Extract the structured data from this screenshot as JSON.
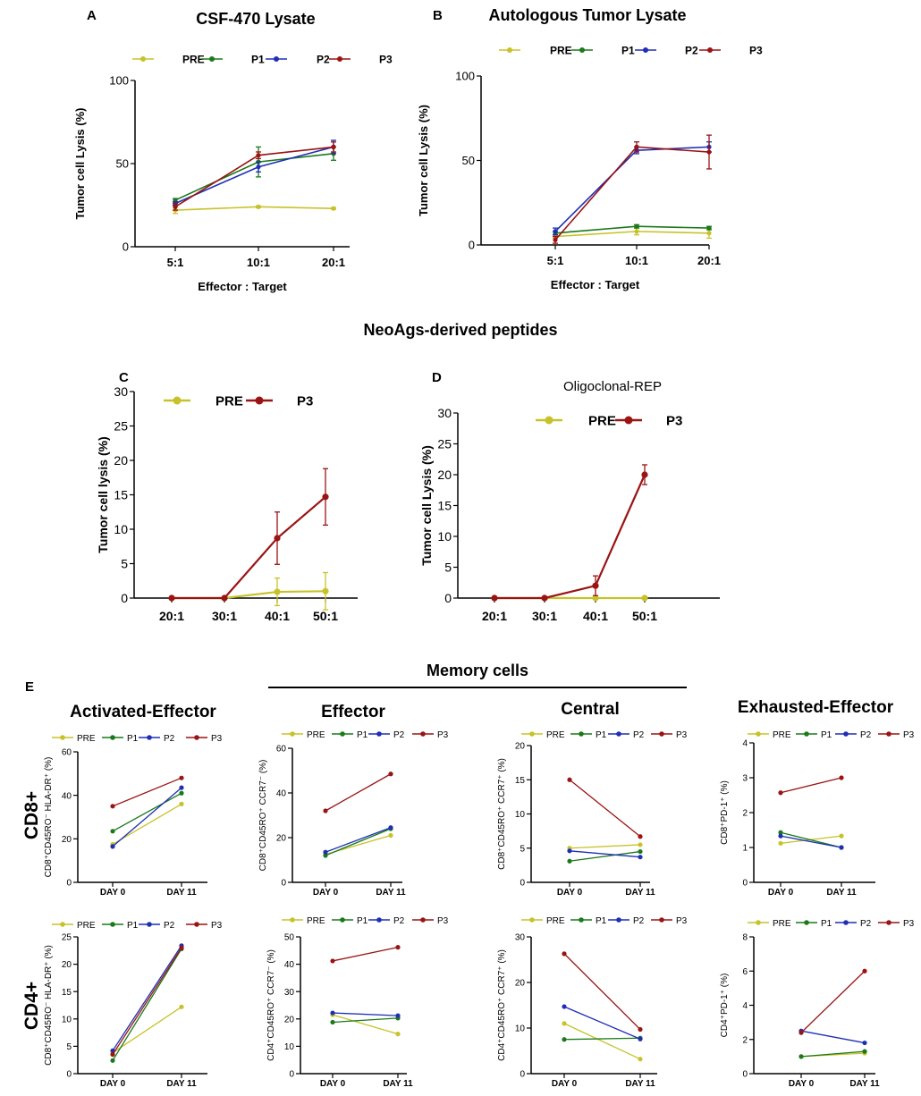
{
  "figure": {
    "panel_letters": [
      "A",
      "B",
      "C",
      "D",
      "E"
    ],
    "section_title_neo": "NeoAgs-derived peptides",
    "section_title_memory": "Memory cells",
    "row_labels": [
      "CD8+",
      "CD4+"
    ],
    "column_titles": [
      "Activated-Effector",
      "Effector",
      "Central",
      "Exhausted-Effector"
    ]
  },
  "colors": {
    "PRE": "#c8c22a",
    "P1": "#1a7a1a",
    "P2": "#1f2fb5",
    "P3": "#9a1414"
  },
  "chart_data": [
    {
      "id": "A",
      "type": "line",
      "title": "CSF-470 Lysate",
      "xlabel": "Effector : Target",
      "ylabel": "Tumor cell Lysis (%)",
      "categories": [
        "5:1",
        "10:1",
        "20:1"
      ],
      "ylim": [
        0,
        100
      ],
      "yticks": [
        0,
        50,
        100
      ],
      "series": [
        {
          "name": "PRE",
          "values": [
            22,
            24,
            23
          ],
          "errors": [
            2,
            0.5,
            0.5
          ]
        },
        {
          "name": "P1",
          "values": [
            28,
            51,
            56
          ],
          "errors": [
            1,
            9,
            4
          ]
        },
        {
          "name": "P2",
          "values": [
            26,
            48,
            60
          ],
          "errors": [
            1,
            3,
            4
          ]
        },
        {
          "name": "P3",
          "values": [
            24,
            55,
            60
          ],
          "errors": [
            2,
            2,
            3
          ]
        }
      ]
    },
    {
      "id": "B",
      "type": "line",
      "title": "Autologous Tumor Lysate",
      "xlabel": "Effector : Target",
      "ylabel": "Tumor cell Lysis (%)",
      "categories": [
        "5:1",
        "10:1",
        "20:1"
      ],
      "ylim": [
        0,
        100
      ],
      "yticks": [
        0,
        50,
        100
      ],
      "series": [
        {
          "name": "PRE",
          "values": [
            5,
            8,
            7
          ],
          "errors": [
            1,
            2,
            3
          ]
        },
        {
          "name": "P1",
          "values": [
            7,
            11,
            10
          ],
          "errors": [
            1,
            1,
            1
          ]
        },
        {
          "name": "P2",
          "values": [
            8,
            56,
            58
          ],
          "errors": [
            2,
            2,
            3
          ]
        },
        {
          "name": "P3",
          "values": [
            3,
            58,
            55
          ],
          "errors": [
            2,
            3,
            10
          ]
        }
      ]
    },
    {
      "id": "C",
      "type": "line",
      "title": "",
      "xlabel": "",
      "ylabel": "Tumor cell lysis (%)",
      "categories": [
        "20:1",
        "30:1",
        "40:1",
        "50:1"
      ],
      "ylim": [
        0,
        30
      ],
      "yticks": [
        0,
        5,
        10,
        15,
        20,
        25,
        30
      ],
      "series": [
        {
          "name": "PRE",
          "values": [
            0,
            0,
            0.9,
            1.0
          ],
          "errors": [
            0,
            0,
            2,
            2.7
          ]
        },
        {
          "name": "P3",
          "values": [
            0,
            0,
            8.7,
            14.7
          ],
          "errors": [
            0,
            0,
            3.8,
            4.1
          ]
        }
      ]
    },
    {
      "id": "D",
      "type": "line",
      "title": "Oligoclonal-REP",
      "xlabel": "",
      "ylabel": "Tumor cell Lysis (%)",
      "categories": [
        "20:1",
        "30:1",
        "40:1",
        "50:1"
      ],
      "ylim": [
        0,
        30
      ],
      "yticks": [
        0,
        5,
        10,
        15,
        20,
        25,
        30
      ],
      "series": [
        {
          "name": "PRE",
          "values": [
            0,
            0,
            0,
            0
          ],
          "errors": [
            0,
            0,
            0,
            0
          ]
        },
        {
          "name": "P3",
          "values": [
            0,
            0,
            2.0,
            20.0
          ],
          "errors": [
            0,
            0,
            1.6,
            1.6
          ]
        }
      ]
    },
    {
      "id": "E1",
      "type": "line",
      "row": "CD8+",
      "column": "Activated-Effector",
      "ylabel": "CD8⁺CD45RO⁻ HLA-DR⁺ (%)",
      "categories": [
        "DAY 0",
        "DAY 11"
      ],
      "ylim": [
        0,
        60
      ],
      "yticks": [
        0,
        20,
        40,
        60
      ],
      "series": [
        {
          "name": "PRE",
          "values": [
            17.5,
            36
          ]
        },
        {
          "name": "P1",
          "values": [
            23.5,
            41
          ]
        },
        {
          "name": "P2",
          "values": [
            16.5,
            43.5
          ]
        },
        {
          "name": "P3",
          "values": [
            35,
            48
          ]
        }
      ]
    },
    {
      "id": "E2",
      "type": "line",
      "row": "CD8+",
      "column": "Effector",
      "ylabel": "CD8⁺CD45RO⁺ CCR7⁻ (%)",
      "categories": [
        "DAY 0",
        "DAY 11"
      ],
      "ylim": [
        0,
        60
      ],
      "yticks": [
        0,
        20,
        40,
        60
      ],
      "series": [
        {
          "name": "PRE",
          "values": [
            12.5,
            21
          ]
        },
        {
          "name": "P1",
          "values": [
            12,
            24
          ]
        },
        {
          "name": "P2",
          "values": [
            13.5,
            24.5
          ]
        },
        {
          "name": "P3",
          "values": [
            32,
            48.5
          ]
        }
      ]
    },
    {
      "id": "E3",
      "type": "line",
      "row": "CD8+",
      "column": "Central",
      "ylabel": "CD8⁺CD45RO⁺ CCR7⁺ (%)",
      "categories": [
        "DAY 0",
        "DAY 11"
      ],
      "ylim": [
        0,
        20
      ],
      "yticks": [
        0,
        5,
        10,
        15,
        20
      ],
      "series": [
        {
          "name": "PRE",
          "values": [
            5,
            5.5
          ]
        },
        {
          "name": "P1",
          "values": [
            3.1,
            4.5
          ]
        },
        {
          "name": "P2",
          "values": [
            4.6,
            3.7
          ]
        },
        {
          "name": "P3",
          "values": [
            15,
            6.7
          ]
        }
      ]
    },
    {
      "id": "E4",
      "type": "line",
      "row": "CD8+",
      "column": "Exhausted-Effector",
      "ylabel": "CD8⁺PD-1⁺ (%)",
      "categories": [
        "DAY 0",
        "DAY 11"
      ],
      "ylim": [
        0,
        4
      ],
      "yticks": [
        0,
        1,
        2,
        3,
        4
      ],
      "series": [
        {
          "name": "PRE",
          "values": [
            1.12,
            1.33
          ]
        },
        {
          "name": "P1",
          "values": [
            1.43,
            1.0
          ]
        },
        {
          "name": "P2",
          "values": [
            1.33,
            1.0
          ]
        },
        {
          "name": "P3",
          "values": [
            2.57,
            3.0
          ]
        }
      ]
    },
    {
      "id": "E5",
      "type": "line",
      "row": "CD4+",
      "column": "Activated-Effector",
      "ylabel": "CD8⁺CD45RO⁻ HLA-DR⁺ (%)",
      "categories": [
        "DAY 0",
        "DAY 11"
      ],
      "ylim": [
        0,
        25
      ],
      "yticks": [
        0,
        5,
        10,
        15,
        20,
        25
      ],
      "series": [
        {
          "name": "PRE",
          "values": [
            3.8,
            12.2
          ]
        },
        {
          "name": "P1",
          "values": [
            2.4,
            22.8
          ]
        },
        {
          "name": "P2",
          "values": [
            4.2,
            23.4
          ]
        },
        {
          "name": "P3",
          "values": [
            3.5,
            23.0
          ]
        }
      ]
    },
    {
      "id": "E6",
      "type": "line",
      "row": "CD4+",
      "column": "Effector",
      "ylabel": "CD4⁺CD45RO⁺ CCR7⁻ (%)",
      "categories": [
        "DAY 0",
        "DAY 11"
      ],
      "ylim": [
        0,
        50
      ],
      "yticks": [
        0,
        10,
        20,
        30,
        40,
        50
      ],
      "series": [
        {
          "name": "PRE",
          "values": [
            21.5,
            14.5
          ]
        },
        {
          "name": "P1",
          "values": [
            18.8,
            20.3
          ]
        },
        {
          "name": "P2",
          "values": [
            22.2,
            21.2
          ]
        },
        {
          "name": "P3",
          "values": [
            41.2,
            46.2
          ]
        }
      ]
    },
    {
      "id": "E7",
      "type": "line",
      "row": "CD4+",
      "column": "Central",
      "ylabel": "CD4⁺CD45RO⁺ CCR7⁺ (%)",
      "categories": [
        "DAY 0",
        "DAY 11"
      ],
      "ylim": [
        0,
        30
      ],
      "yticks": [
        0,
        10,
        20,
        30
      ],
      "series": [
        {
          "name": "PRE",
          "values": [
            11,
            3.2
          ]
        },
        {
          "name": "P1",
          "values": [
            7.5,
            7.8
          ]
        },
        {
          "name": "P2",
          "values": [
            14.7,
            7.6
          ]
        },
        {
          "name": "P3",
          "values": [
            26.3,
            9.7
          ]
        }
      ]
    },
    {
      "id": "E8",
      "type": "line",
      "row": "CD4+",
      "column": "Exhausted-Effector",
      "ylabel": "CD4⁺PD-1⁺ (%)",
      "categories": [
        "DAY 0",
        "DAY 11"
      ],
      "ylim": [
        0,
        8
      ],
      "yticks": [
        0,
        2,
        4,
        6,
        8
      ],
      "series": [
        {
          "name": "PRE",
          "values": [
            1.0,
            1.2
          ]
        },
        {
          "name": "P1",
          "values": [
            1.0,
            1.3
          ]
        },
        {
          "name": "P2",
          "values": [
            2.5,
            1.8
          ]
        },
        {
          "name": "P3",
          "values": [
            2.4,
            6.0
          ]
        }
      ]
    }
  ]
}
